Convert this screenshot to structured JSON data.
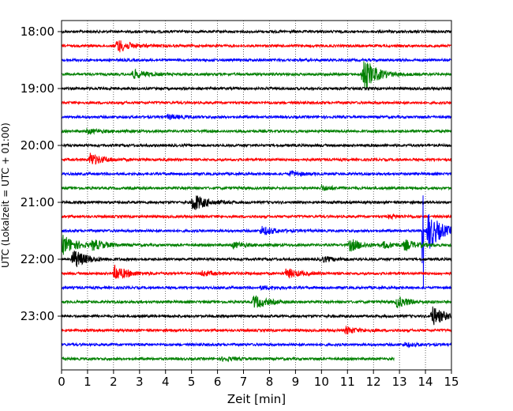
{
  "chart_data": {
    "type": "line",
    "title": "",
    "xlabel": "Zeit  [min]",
    "ylabel": "UTC (Lokalzeit = UTC + 01:00)",
    "xlim": [
      0,
      15
    ],
    "x_ticks": [
      "0",
      "1",
      "2",
      "3",
      "4",
      "5",
      "6",
      "7",
      "8",
      "9",
      "10",
      "11",
      "12",
      "13",
      "14",
      "15"
    ],
    "y_tick_labels": [
      "18:00",
      "19:00",
      "20:00",
      "21:00",
      "22:00",
      "23:00"
    ],
    "grid": "x-dotted",
    "trace_colors": [
      "#000000",
      "#ff0000",
      "#0000ff",
      "#008000"
    ],
    "traces_per_hour": 4,
    "minutes_per_trace": 15,
    "traces": [
      {
        "time": "18:00",
        "color": "#000000",
        "events": []
      },
      {
        "time": "18:15",
        "color": "#ff0000",
        "events": [
          {
            "t": 2.15,
            "amp": 0.6
          }
        ]
      },
      {
        "time": "18:30",
        "color": "#0000ff",
        "events": []
      },
      {
        "time": "18:45",
        "color": "#008000",
        "events": [
          {
            "t": 2.75,
            "amp": 0.4
          },
          {
            "t": 11.6,
            "amp": 1.6
          }
        ]
      },
      {
        "time": "19:00",
        "color": "#000000",
        "events": []
      },
      {
        "time": "19:15",
        "color": "#ff0000",
        "events": []
      },
      {
        "time": "19:30",
        "color": "#0000ff",
        "events": [
          {
            "t": 4.1,
            "amp": 0.2
          }
        ]
      },
      {
        "time": "19:45",
        "color": "#008000",
        "events": [
          {
            "t": 1.0,
            "amp": 0.2
          }
        ]
      },
      {
        "time": "20:00",
        "color": "#000000",
        "events": []
      },
      {
        "time": "20:15",
        "color": "#ff0000",
        "events": [
          {
            "t": 1.1,
            "amp": 0.55
          }
        ]
      },
      {
        "time": "20:30",
        "color": "#0000ff",
        "events": [
          {
            "t": 8.8,
            "amp": 0.2
          }
        ]
      },
      {
        "time": "20:45",
        "color": "#008000",
        "events": [
          {
            "t": 10.0,
            "amp": 0.2
          }
        ]
      },
      {
        "time": "21:00",
        "color": "#000000",
        "events": [
          {
            "t": 5.05,
            "amp": 0.85
          }
        ]
      },
      {
        "time": "21:15",
        "color": "#ff0000",
        "events": [
          {
            "t": 12.6,
            "amp": 0.15
          }
        ]
      },
      {
        "time": "21:30",
        "color": "#0000ff",
        "events": [
          {
            "t": 7.7,
            "amp": 0.4
          },
          {
            "t": 13.9,
            "amp": 7.0
          },
          {
            "t": 14.1,
            "amp": 1.8
          }
        ]
      },
      {
        "time": "21:45",
        "color": "#008000",
        "events": [
          {
            "t": 0.0,
            "amp": 1.0
          },
          {
            "t": 1.2,
            "amp": 0.5
          },
          {
            "t": 6.6,
            "amp": 0.25
          },
          {
            "t": 11.1,
            "amp": 0.55
          },
          {
            "t": 12.4,
            "amp": 0.3
          },
          {
            "t": 13.2,
            "amp": 0.45
          }
        ]
      },
      {
        "time": "22:00",
        "color": "#000000",
        "events": [
          {
            "t": 0.45,
            "amp": 0.9
          },
          {
            "t": 10.0,
            "amp": 0.25
          }
        ]
      },
      {
        "time": "22:15",
        "color": "#ff0000",
        "events": [
          {
            "t": 2.05,
            "amp": 0.7
          },
          {
            "t": 5.4,
            "amp": 0.2
          },
          {
            "t": 8.65,
            "amp": 0.45
          }
        ]
      },
      {
        "time": "22:30",
        "color": "#0000ff",
        "events": [
          {
            "t": 7.7,
            "amp": 0.15
          }
        ]
      },
      {
        "time": "22:45",
        "color": "#008000",
        "events": [
          {
            "t": 7.4,
            "amp": 0.6
          },
          {
            "t": 12.9,
            "amp": 0.5
          }
        ]
      },
      {
        "time": "23:00",
        "color": "#000000",
        "events": [
          {
            "t": 14.25,
            "amp": 0.9
          }
        ]
      },
      {
        "time": "23:15",
        "color": "#ff0000",
        "events": [
          {
            "t": 10.95,
            "amp": 0.3
          }
        ]
      },
      {
        "time": "23:30",
        "color": "#0000ff",
        "events": [
          {
            "t": 13.2,
            "amp": 0.15
          }
        ]
      },
      {
        "time": "23:45",
        "color": "#008000",
        "events": [
          {
            "t": 6.2,
            "amp": 0.15
          }
        ],
        "end_minute": 12.8
      }
    ]
  }
}
